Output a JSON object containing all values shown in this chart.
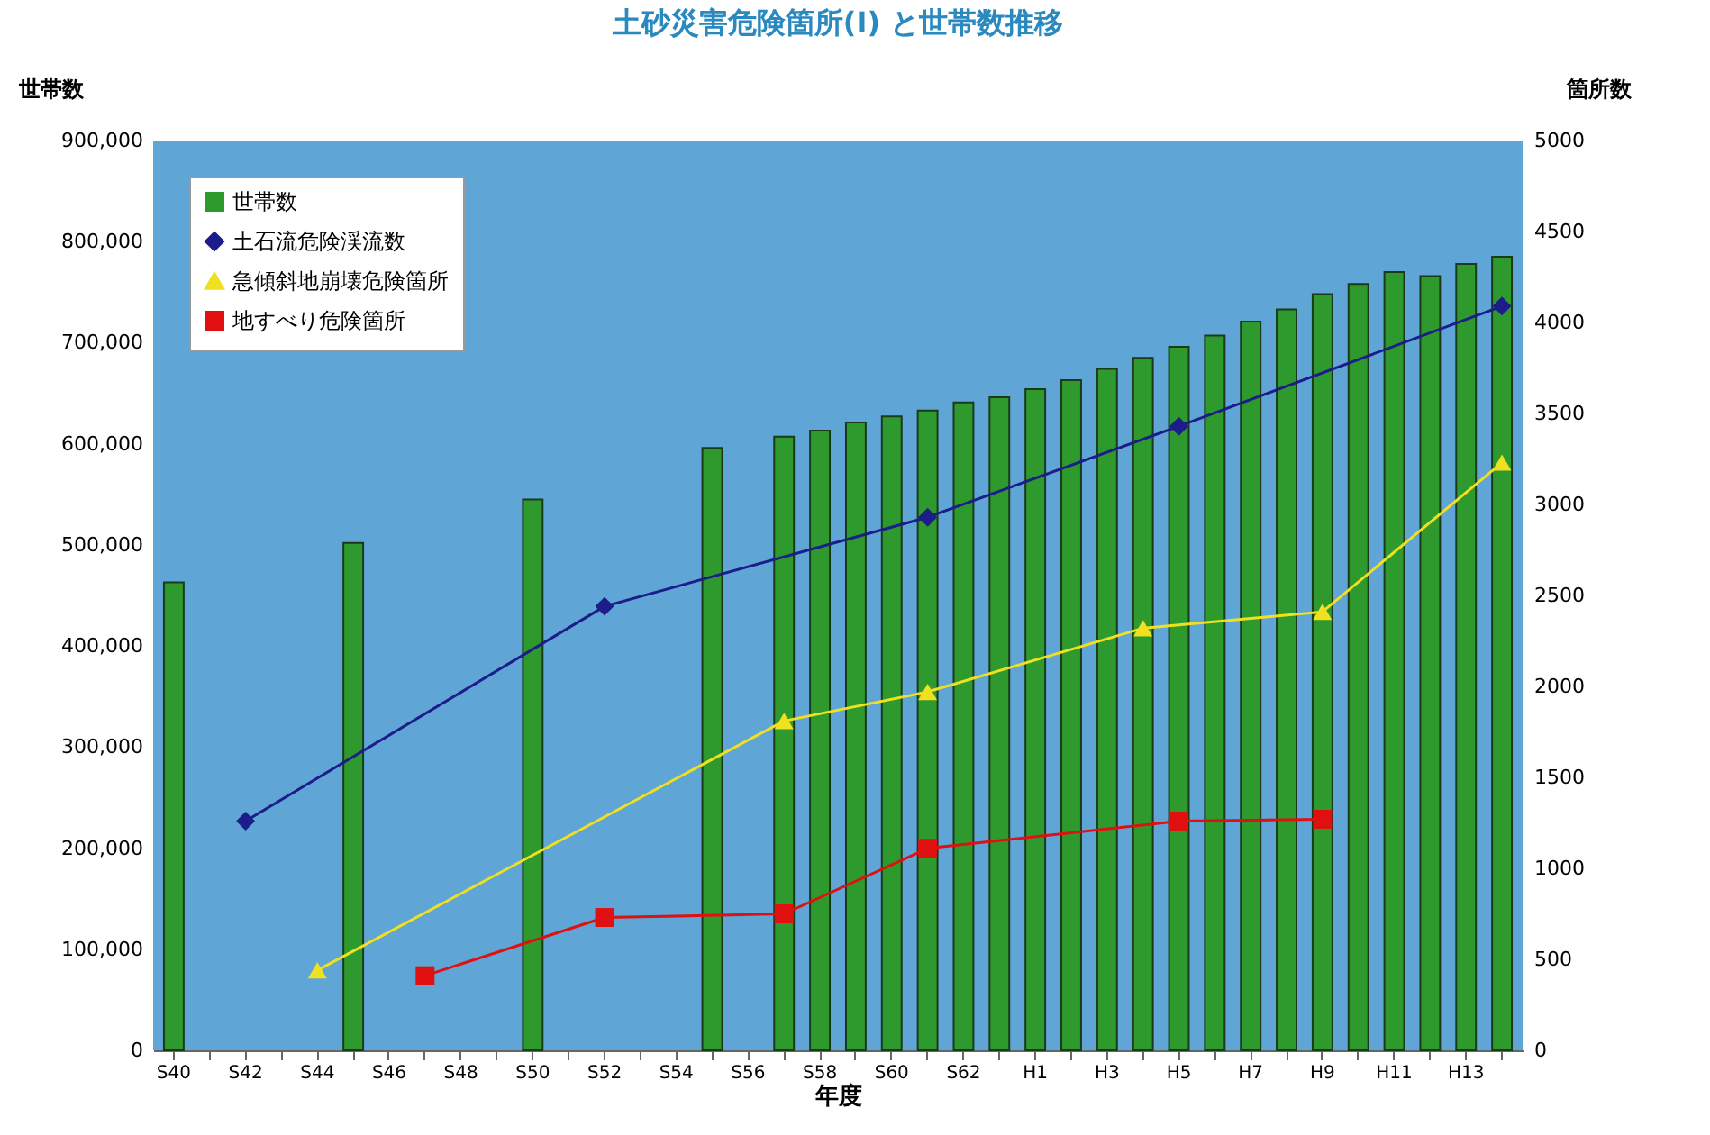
{
  "chart_data": {
    "type": "bar",
    "title": "土砂災害危険箇所(Ⅰ) と世帯数推移",
    "xlabel": "年度",
    "ylabel": "世帯数",
    "y2label": "箇所数",
    "categories": [
      "S40",
      null,
      "S42",
      null,
      "S44",
      null,
      "S46",
      null,
      "S48",
      null,
      "S50",
      null,
      "S52",
      null,
      "S54",
      null,
      "S56",
      null,
      "S58",
      null,
      "S60",
      null,
      "S62",
      null,
      "H1",
      null,
      "H3",
      null,
      "H5",
      null,
      "H7",
      null,
      "H9",
      null,
      "H11",
      null,
      "H13",
      null
    ],
    "series": [
      {
        "name": "世帯数",
        "color": "#2e9a2e",
        "values": [
          463000,
          null,
          null,
          null,
          null,
          502000,
          null,
          null,
          null,
          null,
          545000,
          null,
          null,
          null,
          null,
          596000,
          null,
          607000,
          613000,
          621000,
          627000,
          633000,
          641000,
          646000,
          654000,
          663000,
          674000,
          685000,
          696000,
          707000,
          721000,
          733000,
          748000,
          758000,
          770000,
          766000,
          778000,
          785000
        ]
      },
      {
        "name": "土石流危険渓流数",
        "type": "line",
        "axis": "y2",
        "marker": "diamond",
        "color": "#1c1c8a",
        "values": [
          null,
          null,
          1260,
          null,
          null,
          null,
          null,
          null,
          null,
          null,
          null,
          null,
          2440,
          null,
          null,
          null,
          null,
          null,
          null,
          null,
          null,
          2930,
          null,
          null,
          null,
          null,
          null,
          null,
          3430,
          null,
          null,
          null,
          null,
          null,
          null,
          null,
          null,
          4090
        ]
      },
      {
        "name": "急傾斜地崩壊危険箇所",
        "type": "line",
        "axis": "y2",
        "marker": "triangle",
        "color": "#f0e020",
        "values": [
          null,
          null,
          null,
          null,
          440,
          null,
          null,
          null,
          null,
          null,
          null,
          null,
          null,
          null,
          null,
          null,
          null,
          1810,
          null,
          null,
          null,
          1970,
          null,
          null,
          null,
          null,
          null,
          2320,
          null,
          null,
          null,
          null,
          2410,
          null,
          null,
          null,
          null,
          3230
        ]
      },
      {
        "name": "地すべり危険箇所",
        "type": "line",
        "axis": "y2",
        "marker": "square",
        "color": "#e01010",
        "values": [
          null,
          null,
          null,
          null,
          null,
          null,
          null,
          410,
          null,
          null,
          null,
          null,
          730,
          null,
          null,
          null,
          null,
          750,
          null,
          null,
          null,
          1110,
          null,
          null,
          null,
          null,
          null,
          null,
          1260,
          null,
          null,
          null,
          1270,
          null,
          null,
          null,
          null,
          null
        ]
      }
    ],
    "ylim": [
      0,
      900000
    ],
    "yticks": [
      0,
      {
        "value": 100000,
        "label": "100,000"
      },
      {
        "value": 200000,
        "label": "200,000"
      },
      {
        "value": 300000,
        "label": "300,000"
      },
      {
        "value": 400000,
        "label": "400,000"
      },
      {
        "value": 500000,
        "label": "500,000"
      },
      {
        "value": 600000,
        "label": "600,000"
      },
      {
        "value": 700000,
        "label": "700,000"
      },
      {
        "value": 800000,
        "label": "800,000"
      },
      {
        "value": 900000,
        "label": "900,000"
      }
    ],
    "y2lim": [
      0,
      5000
    ],
    "y2ticks": [
      0,
      500,
      1000,
      1500,
      2000,
      2500,
      3000,
      3500,
      4000,
      4500,
      5000
    ],
    "legend": "top left",
    "grid": false
  }
}
